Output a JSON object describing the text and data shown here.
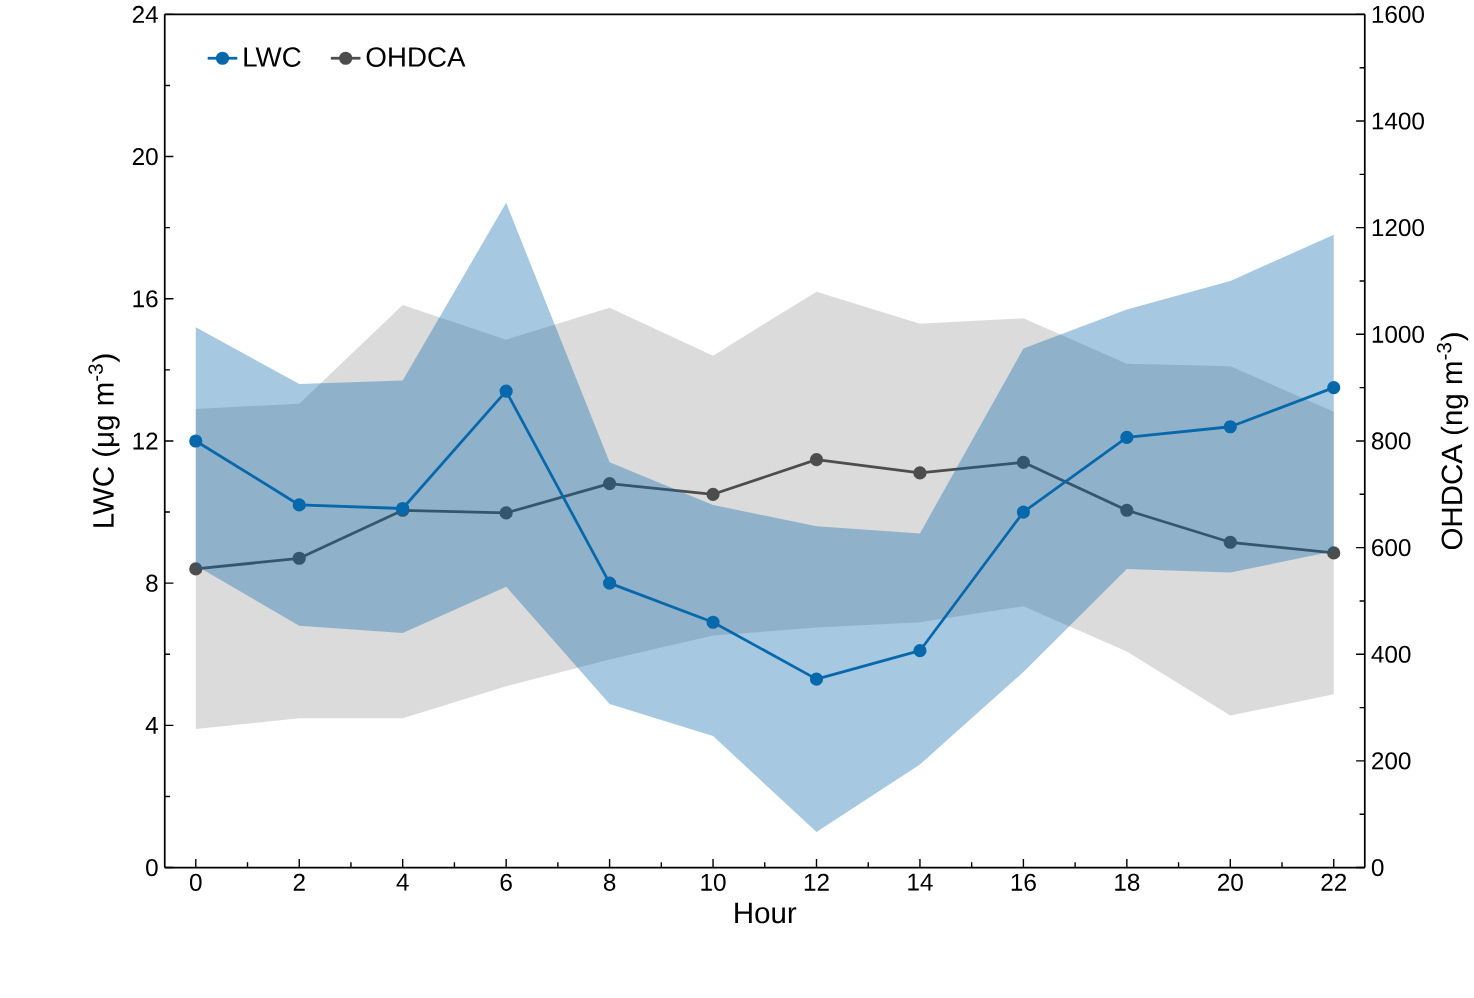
{
  "chart_data": {
    "type": "line",
    "xlabel": "Hour",
    "ylabel": "LWC (μg m$^{-3}$)",
    "y2label": "OHDCA (ng m$^{-3}$)",
    "x": [
      0,
      2,
      4,
      6,
      8,
      10,
      12,
      14,
      16,
      18,
      20,
      22
    ],
    "series": [
      {
        "name": "LWC",
        "color": "#0868ac",
        "values": [
          12.0,
          10.2,
          10.1,
          13.4,
          8.0,
          6.9,
          5.3,
          6.1,
          10.0,
          12.1,
          12.4,
          13.5
        ],
        "lower": [
          8.5,
          6.8,
          6.6,
          7.9,
          4.6,
          3.7,
          1.0,
          2.9,
          5.5,
          8.4,
          8.3,
          8.9
        ],
        "upper": [
          15.2,
          13.6,
          13.7,
          18.7,
          11.4,
          10.2,
          9.6,
          9.4,
          14.6,
          15.7,
          16.5,
          17.8
        ]
      },
      {
        "name": "OHDCA",
        "color": "#4d4d4d",
        "axis": "y2",
        "values": [
          560,
          580,
          670,
          665,
          720,
          700,
          765,
          740,
          760,
          670,
          610,
          590
        ],
        "lower": [
          260,
          280,
          280,
          340,
          390,
          435,
          450,
          460,
          490,
          405,
          285,
          325
        ],
        "upper": [
          860,
          870,
          1055,
          990,
          1050,
          960,
          1080,
          1020,
          1030,
          945,
          940,
          855
        ]
      }
    ],
    "xlim": [
      -0.6,
      22.6
    ],
    "xticks": [
      0,
      2,
      4,
      6,
      8,
      10,
      12,
      14,
      16,
      18,
      20,
      22
    ],
    "ylim": [
      0,
      24
    ],
    "yticks": [
      0,
      4,
      8,
      12,
      16,
      20,
      24
    ],
    "y2lim": [
      0,
      1600
    ],
    "y2ticks": [
      0,
      200,
      400,
      600,
      800,
      1000,
      1200,
      1400,
      1600
    ],
    "legend": "top left",
    "marker": "circle",
    "line_style": "solid",
    "grid": false
  }
}
